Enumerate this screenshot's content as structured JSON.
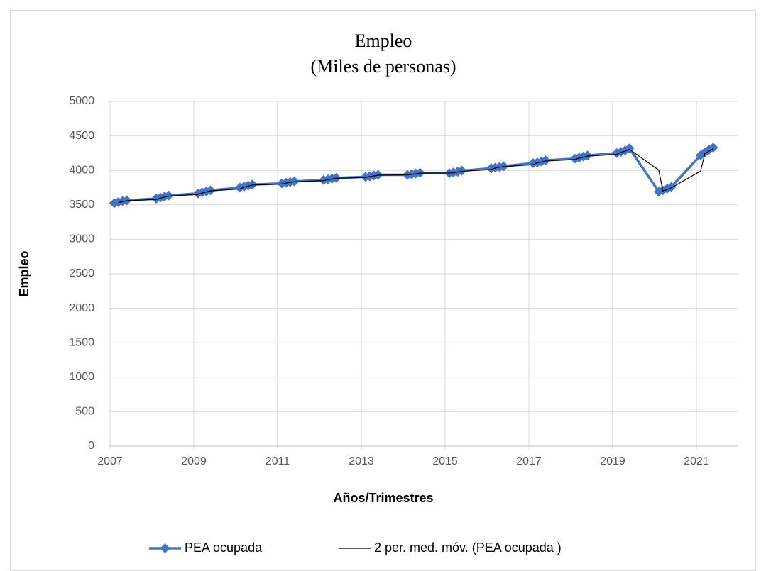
{
  "chart_data": {
    "type": "line",
    "title": "Empleo",
    "subtitle": "(Miles de personas)",
    "x_label": "Años/Trimestres",
    "y_label": "Empleo",
    "x": [
      2007.1,
      2007.2,
      2007.3,
      2007.4,
      2008.1,
      2008.2,
      2008.3,
      2008.4,
      2009.1,
      2009.2,
      2009.3,
      2009.4,
      2010.1,
      2010.2,
      2010.3,
      2010.4,
      2011.1,
      2011.2,
      2011.3,
      2011.4,
      2012.1,
      2012.2,
      2012.3,
      2012.4,
      2013.1,
      2013.2,
      2013.3,
      2013.4,
      2014.1,
      2014.2,
      2014.3,
      2014.4,
      2015.1,
      2015.2,
      2015.3,
      2015.4,
      2016.1,
      2016.2,
      2016.3,
      2016.4,
      2017.1,
      2017.2,
      2017.3,
      2017.4,
      2018.1,
      2018.2,
      2018.3,
      2018.4,
      2019.1,
      2019.2,
      2019.3,
      2019.4,
      2020.1,
      2020.2,
      2020.3,
      2020.4,
      2021.1,
      2021.2,
      2021.3,
      2021.4
    ],
    "series": [
      {
        "name": "PEA ocupada",
        "color": "#4472c4",
        "marker": "diamond",
        "values": [
          3525,
          3540,
          3555,
          3565,
          3590,
          3605,
          3620,
          3635,
          3665,
          3680,
          3695,
          3710,
          3750,
          3765,
          3780,
          3795,
          3810,
          3820,
          3830,
          3840,
          3860,
          3870,
          3880,
          3890,
          3905,
          3915,
          3925,
          3935,
          3935,
          3945,
          3955,
          3965,
          3960,
          3970,
          3980,
          3995,
          4030,
          4040,
          4050,
          4060,
          4105,
          4115,
          4130,
          4145,
          4170,
          4185,
          4200,
          4215,
          4250,
          4270,
          4290,
          4320,
          3690,
          3710,
          3735,
          3760,
          4220,
          4260,
          4300,
          4330
        ]
      },
      {
        "name": "2 per. med. móv. (PEA ocupada )",
        "color": "#000000",
        "values": [
          null,
          3532.5,
          3547.5,
          3560,
          3577.5,
          3597.5,
          3612.5,
          3627.5,
          3650,
          3672.5,
          3687.5,
          3702.5,
          3730,
          3757.5,
          3772.5,
          3787.5,
          3802.5,
          3815,
          3825,
          3835,
          3850,
          3865,
          3875,
          3885,
          3897.5,
          3910,
          3920,
          3930,
          3935,
          3940,
          3950,
          3960,
          3962.5,
          3965,
          3975,
          3987.5,
          4012.5,
          4035,
          4045,
          4055,
          4082.5,
          4110,
          4122.5,
          4137.5,
          4157.5,
          4177.5,
          4192.5,
          4207.5,
          4232.5,
          4260,
          4280,
          4305,
          4005,
          3700,
          3722.5,
          3747.5,
          3990,
          4240,
          4280,
          4315
        ]
      }
    ],
    "xlim": [
      2007,
      2022
    ],
    "xticks": [
      2007,
      2009,
      2011,
      2013,
      2015,
      2017,
      2019,
      2021
    ],
    "ylim": [
      0,
      5000
    ],
    "yticks": [
      0,
      500,
      1000,
      1500,
      2000,
      2500,
      3000,
      3500,
      4000,
      4500,
      5000
    ],
    "grid": true,
    "legend": "bottom"
  }
}
